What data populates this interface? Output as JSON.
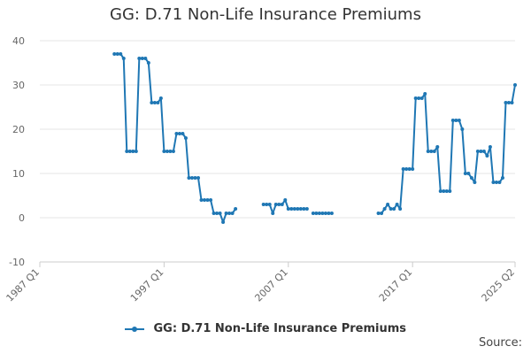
{
  "chart_data": {
    "type": "line",
    "title": "GG: D.71 Non-Life Insurance Premiums",
    "x_tick_labels": [
      "1987 Q1",
      "1997 Q1",
      "2007 Q1",
      "2017 Q1",
      "2025 Q2"
    ],
    "y_ticks": [
      -10,
      0,
      10,
      20,
      30,
      40
    ],
    "ylim": [
      -10,
      40
    ],
    "grid": true,
    "legend_position": "bottom",
    "series": [
      {
        "name": "GG: D.71 Non-Life Insurance Premiums",
        "color": "#1f77b4",
        "segments": [
          [
            [
              "1993 Q1",
              37
            ],
            [
              "1993 Q2",
              37
            ],
            [
              "1993 Q3",
              37
            ],
            [
              "1993 Q4",
              36
            ],
            [
              "1994 Q1",
              15
            ],
            [
              "1994 Q2",
              15
            ],
            [
              "1994 Q3",
              15
            ],
            [
              "1994 Q4",
              15
            ],
            [
              "1995 Q1",
              36
            ],
            [
              "1995 Q2",
              36
            ],
            [
              "1995 Q3",
              36
            ],
            [
              "1995 Q4",
              35
            ],
            [
              "1996 Q1",
              26
            ],
            [
              "1996 Q2",
              26
            ],
            [
              "1996 Q3",
              26
            ],
            [
              "1996 Q4",
              27
            ],
            [
              "1997 Q1",
              15
            ],
            [
              "1997 Q2",
              15
            ],
            [
              "1997 Q3",
              15
            ],
            [
              "1997 Q4",
              15
            ],
            [
              "1998 Q1",
              19
            ],
            [
              "1998 Q2",
              19
            ],
            [
              "1998 Q3",
              19
            ],
            [
              "1998 Q4",
              18
            ],
            [
              "1999 Q1",
              9
            ],
            [
              "1999 Q2",
              9
            ],
            [
              "1999 Q3",
              9
            ],
            [
              "1999 Q4",
              9
            ],
            [
              "2000 Q1",
              4
            ],
            [
              "2000 Q2",
              4
            ],
            [
              "2000 Q3",
              4
            ],
            [
              "2000 Q4",
              4
            ],
            [
              "2001 Q1",
              1
            ],
            [
              "2001 Q2",
              1
            ],
            [
              "2001 Q3",
              1
            ],
            [
              "2001 Q4",
              -1
            ],
            [
              "2002 Q1",
              1
            ],
            [
              "2002 Q2",
              1
            ],
            [
              "2002 Q3",
              1
            ],
            [
              "2002 Q4",
              2
            ]
          ],
          [
            [
              "2005 Q1",
              3
            ],
            [
              "2005 Q2",
              3
            ],
            [
              "2005 Q3",
              3
            ],
            [
              "2005 Q4",
              1
            ],
            [
              "2006 Q1",
              3
            ],
            [
              "2006 Q2",
              3
            ],
            [
              "2006 Q3",
              3
            ],
            [
              "2006 Q4",
              4
            ],
            [
              "2007 Q1",
              2
            ],
            [
              "2007 Q2",
              2
            ],
            [
              "2007 Q3",
              2
            ],
            [
              "2007 Q4",
              2
            ],
            [
              "2008 Q1",
              2
            ],
            [
              "2008 Q2",
              2
            ],
            [
              "2008 Q3",
              2
            ]
          ],
          [
            [
              "2009 Q1",
              1
            ],
            [
              "2009 Q2",
              1
            ],
            [
              "2009 Q3",
              1
            ],
            [
              "2009 Q4",
              1
            ],
            [
              "2010 Q1",
              1
            ],
            [
              "2010 Q2",
              1
            ],
            [
              "2010 Q3",
              1
            ]
          ],
          [
            [
              "2014 Q2",
              1
            ],
            [
              "2014 Q3",
              1
            ],
            [
              "2014 Q4",
              2
            ],
            [
              "2015 Q1",
              3
            ],
            [
              "2015 Q2",
              2
            ],
            [
              "2015 Q3",
              2
            ],
            [
              "2015 Q4",
              3
            ],
            [
              "2016 Q1",
              2
            ],
            [
              "2016 Q2",
              11
            ],
            [
              "2016 Q3",
              11
            ],
            [
              "2016 Q4",
              11
            ],
            [
              "2017 Q1",
              11
            ],
            [
              "2017 Q2",
              27
            ],
            [
              "2017 Q3",
              27
            ],
            [
              "2017 Q4",
              27
            ],
            [
              "2018 Q1",
              28
            ],
            [
              "2018 Q2",
              15
            ],
            [
              "2018 Q3",
              15
            ],
            [
              "2018 Q4",
              15
            ],
            [
              "2019 Q1",
              16
            ],
            [
              "2019 Q2",
              6
            ],
            [
              "2019 Q3",
              6
            ],
            [
              "2019 Q4",
              6
            ],
            [
              "2020 Q1",
              6
            ],
            [
              "2020 Q2",
              22
            ],
            [
              "2020 Q3",
              22
            ],
            [
              "2020 Q4",
              22
            ],
            [
              "2021 Q1",
              20
            ],
            [
              "2021 Q2",
              10
            ],
            [
              "2021 Q3",
              10
            ],
            [
              "2021 Q4",
              9
            ],
            [
              "2022 Q1",
              8
            ],
            [
              "2022 Q2",
              15
            ],
            [
              "2022 Q3",
              15
            ],
            [
              "2022 Q4",
              15
            ],
            [
              "2023 Q1",
              14
            ],
            [
              "2023 Q2",
              16
            ],
            [
              "2023 Q3",
              8
            ],
            [
              "2023 Q4",
              8
            ],
            [
              "2024 Q1",
              8
            ],
            [
              "2024 Q2",
              9
            ],
            [
              "2024 Q3",
              26
            ],
            [
              "2024 Q4",
              26
            ],
            [
              "2025 Q1",
              26
            ],
            [
              "2025 Q2",
              30
            ]
          ]
        ]
      }
    ]
  },
  "legend": {
    "label": "GG: D.71 Non-Life Insurance Premiums"
  },
  "source": {
    "label": "Source:"
  }
}
